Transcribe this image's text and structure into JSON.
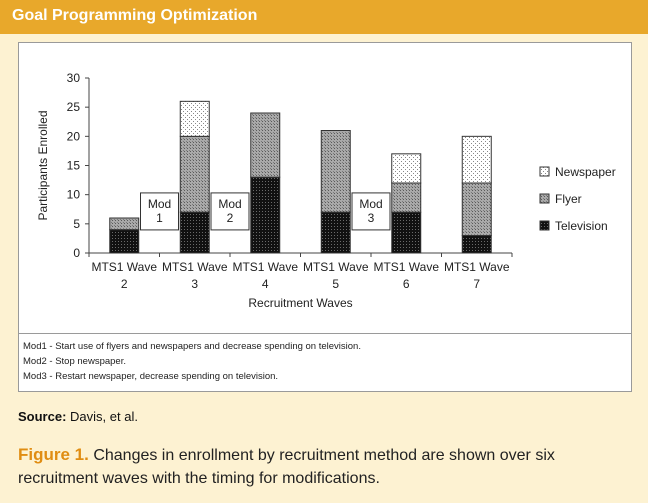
{
  "header": {
    "title": "Goal Programming Optimization"
  },
  "chart_data": {
    "type": "bar",
    "stacked": true,
    "categories": [
      "MTS1 Wave 2",
      "MTS1 Wave 3",
      "MTS1 Wave 4",
      "MTS1 Wave 5",
      "MTS1 Wave 6",
      "MTS1 Wave 7"
    ],
    "category_lines": [
      [
        "MTS1 Wave",
        "2"
      ],
      [
        "MTS1 Wave",
        "3"
      ],
      [
        "MTS1 Wave",
        "4"
      ],
      [
        "MTS1 Wave",
        "5"
      ],
      [
        "MTS1 Wave",
        "6"
      ],
      [
        "MTS1 Wave",
        "7"
      ]
    ],
    "series": [
      {
        "name": "Television",
        "values": [
          4,
          7,
          13,
          7,
          7,
          3
        ]
      },
      {
        "name": "Flyer",
        "values": [
          2,
          13,
          11,
          14,
          5,
          9
        ]
      },
      {
        "name": "Newspaper",
        "values": [
          0,
          6,
          0,
          0,
          5,
          8
        ]
      }
    ],
    "legend_order": [
      "Newspaper",
      "Flyer",
      "Television"
    ],
    "xlabel": "Recruitment Waves",
    "ylabel": "Participants Enrolled",
    "ylim": [
      0,
      30
    ],
    "yticks": [
      0,
      5,
      10,
      15,
      20,
      25,
      30
    ],
    "annotations": [
      {
        "lines": [
          "Mod",
          "1"
        ],
        "between": [
          0,
          1
        ]
      },
      {
        "lines": [
          "Mod",
          "2"
        ],
        "between": [
          1,
          2
        ]
      },
      {
        "lines": [
          "Mod",
          "3"
        ],
        "between": [
          3,
          4
        ]
      }
    ],
    "legend_position": "right"
  },
  "notes": [
    "Mod1 - Start use of flyers and newspapers and decrease spending on television.",
    "Mod2 - Stop newspaper.",
    "Mod3 - Restart newspaper, decrease spending on television."
  ],
  "source": {
    "label": "Source:",
    "text": "Davis, et al."
  },
  "caption": {
    "label": "Figure 1.",
    "text": "Changes in enrollment by recruitment method are shown over six recruitment waves with the timing for modifications."
  }
}
